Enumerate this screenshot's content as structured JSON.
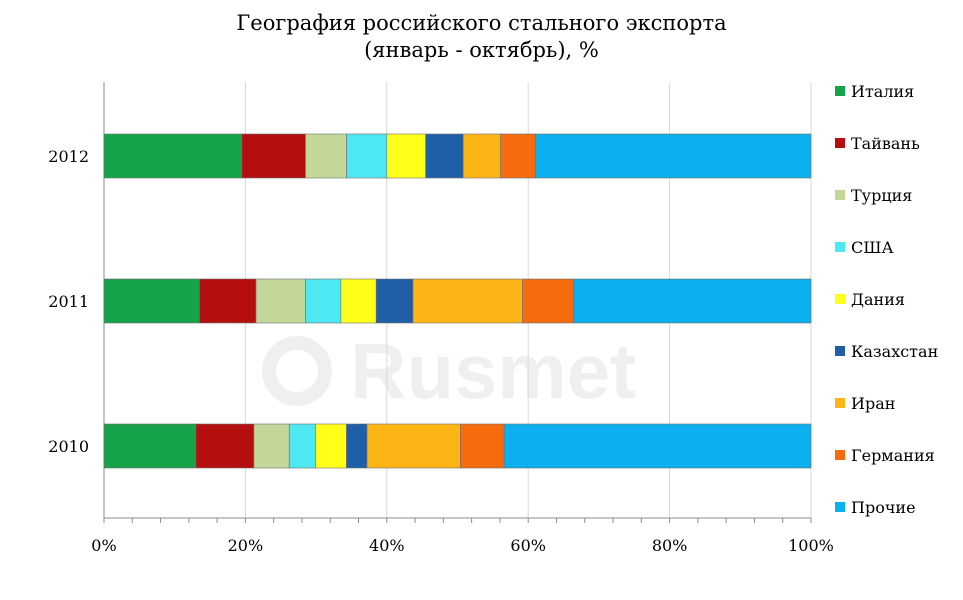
{
  "chart_data": {
    "type": "bar",
    "orientation": "horizontal",
    "stacked": "percent",
    "title": [
      "География российского стального экспорта",
      "(январь - октябрь), %"
    ],
    "categories": [
      "2012",
      "2011",
      "2010"
    ],
    "xlim": [
      0,
      100
    ],
    "x_ticks": [
      "0%",
      "20%",
      "40%",
      "60%",
      "80%",
      "100%"
    ],
    "grid": true,
    "legend_position": "right",
    "series": [
      {
        "name": "Италия",
        "color": "#17A34A",
        "values": [
          19.5,
          13.5,
          13.0
        ]
      },
      {
        "name": "Тайвань",
        "color": "#B40E0E",
        "values": [
          9.0,
          8.0,
          8.2
        ]
      },
      {
        "name": "Турция",
        "color": "#C4D79B",
        "values": [
          5.8,
          7.0,
          5.0
        ]
      },
      {
        "name": "США",
        "color": "#4EE8F2",
        "values": [
          5.7,
          5.0,
          3.7
        ]
      },
      {
        "name": "Дания",
        "color": "#FFFF1A",
        "values": [
          5.5,
          5.0,
          4.4
        ]
      },
      {
        "name": "Казахстан",
        "color": "#1F5FA8",
        "values": [
          5.3,
          5.2,
          2.9
        ]
      },
      {
        "name": "Иран",
        "color": "#FDB515",
        "values": [
          5.3,
          15.5,
          13.2
        ]
      },
      {
        "name": "Германия",
        "color": "#F66B0E",
        "values": [
          4.9,
          7.2,
          6.2
        ]
      },
      {
        "name": "Прочие",
        "color": "#0DB0EE",
        "values": [
          39.0,
          33.6,
          43.4
        ]
      }
    ]
  },
  "watermark": {
    "text": "Rusmet"
  }
}
